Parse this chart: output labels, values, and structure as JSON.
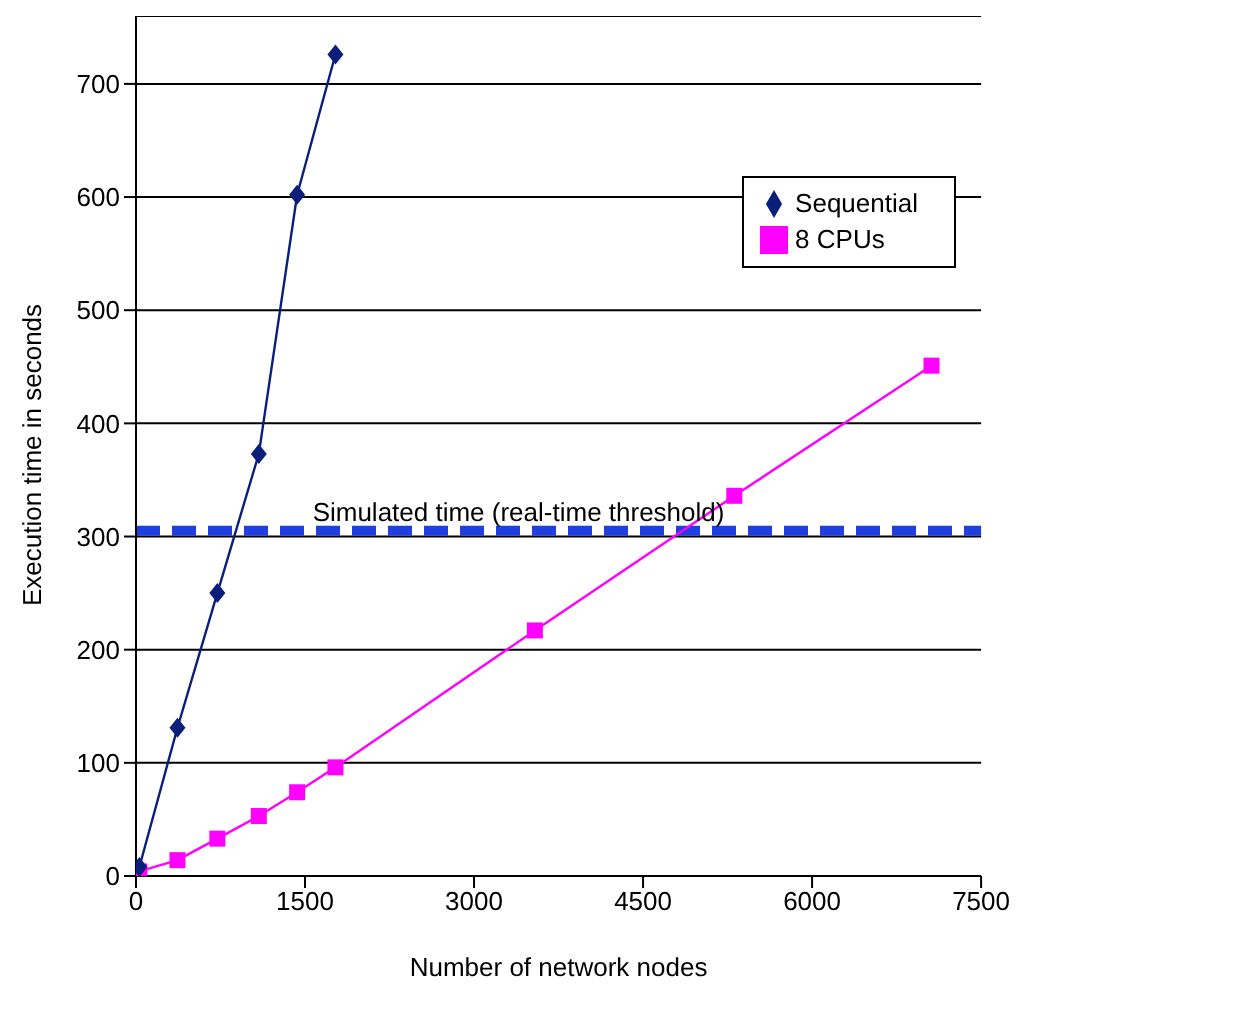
{
  "chart_data": {
    "type": "line",
    "xlabel": "Number of network nodes",
    "ylabel": "Execution time in seconds",
    "xlim": [
      0,
      7500
    ],
    "xticks": [
      0,
      1500,
      3000,
      4500,
      6000,
      7500
    ],
    "ylim": [
      0,
      760
    ],
    "yticks": [
      0,
      100,
      200,
      300,
      400,
      500,
      600,
      700
    ],
    "grid": "y",
    "legend": "top right",
    "line_style": "solid",
    "series": [
      {
        "name": "Sequential",
        "color": "#0a1f7a",
        "marker": "diamond",
        "x": [
          30,
          368,
          722,
          1090,
          1430,
          1770
        ],
        "values": [
          8,
          131,
          250,
          373,
          602,
          726
        ]
      },
      {
        "name": "8 CPUs",
        "color": "#ff00ff",
        "marker": "square",
        "x": [
          30,
          368,
          722,
          1090,
          1430,
          1770,
          3540,
          5310,
          7060
        ],
        "values": [
          4,
          14,
          33,
          53,
          74,
          96,
          217,
          336,
          451
        ]
      }
    ],
    "ref_lines": [
      {
        "axis": "y",
        "value": 305,
        "label": "Simulated time (real-time threshold)",
        "color": "#1f3fe0",
        "line_style": "dashed"
      }
    ]
  }
}
